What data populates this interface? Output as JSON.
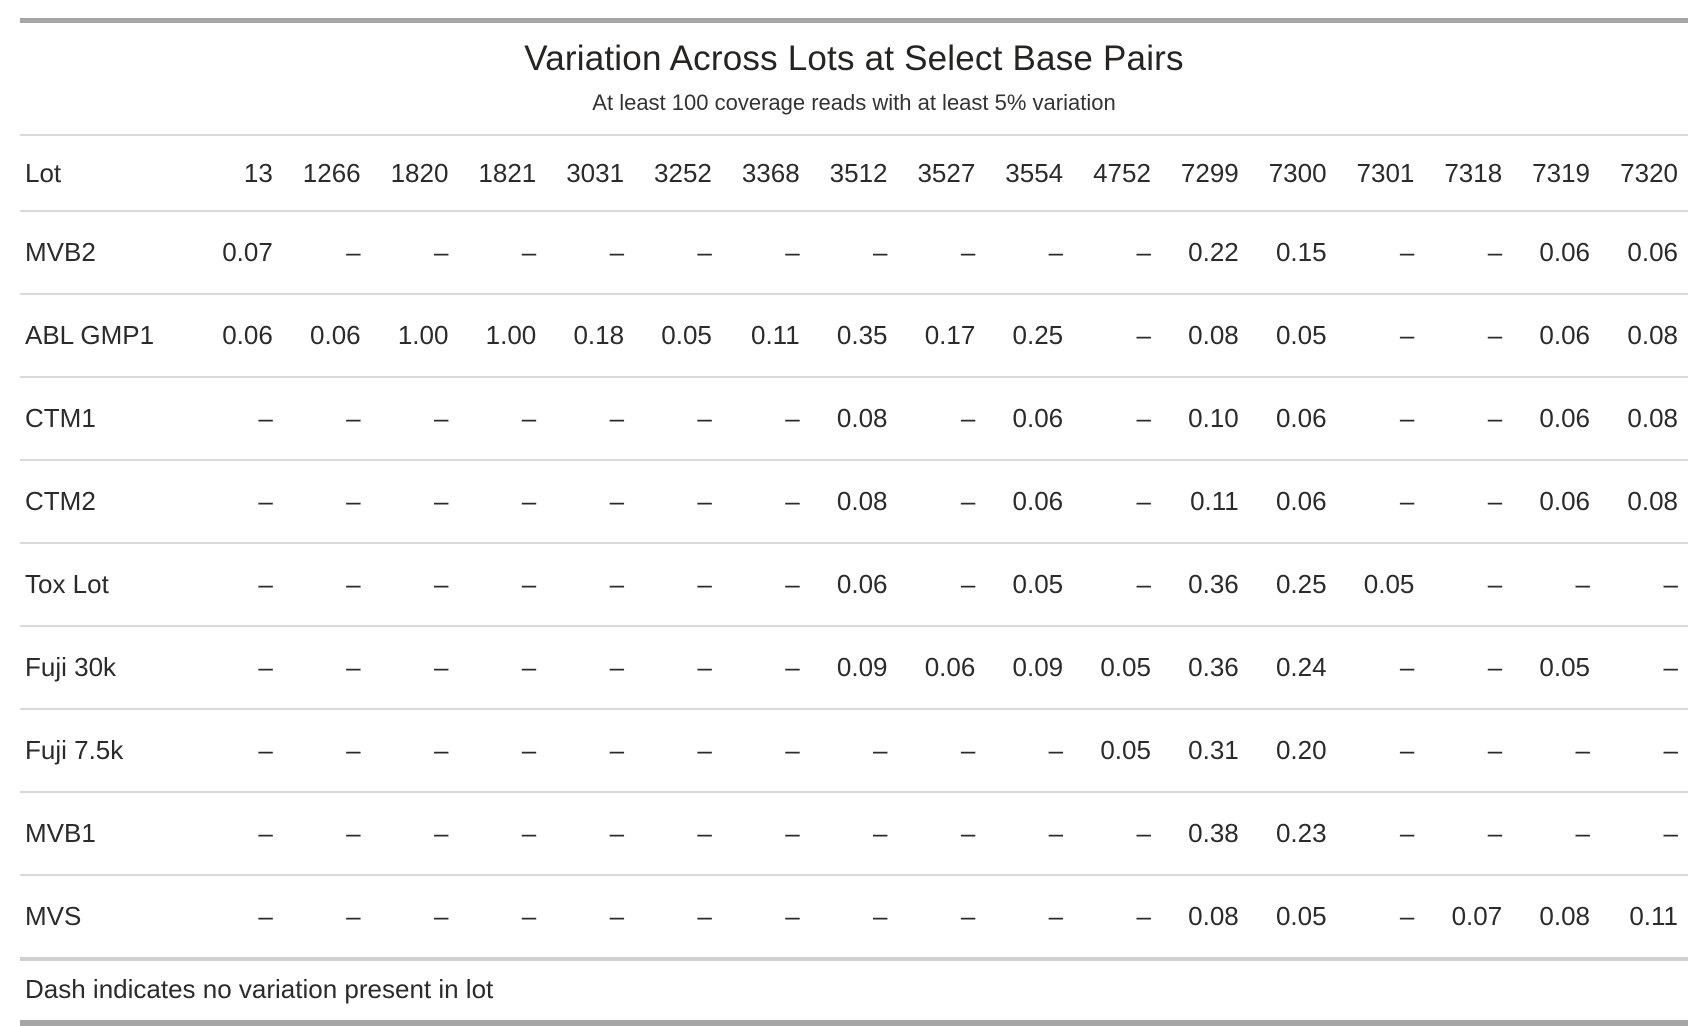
{
  "colors": {
    "rule_dark": "#a6a6a6",
    "rule_light": "#d9d9d9",
    "text": "#2b2b2b",
    "background": "#ffffff"
  },
  "chart_data": {
    "type": "table",
    "title": "Variation Across Lots at Select Base Pairs",
    "subtitle": "At least 100 coverage reads with at least 5% variation",
    "footnote": "Dash indicates no variation present in lot",
    "no_value_symbol": "–",
    "columns": [
      "Lot",
      "13",
      "1266",
      "1820",
      "1821",
      "3031",
      "3252",
      "3368",
      "3512",
      "3527",
      "3554",
      "4752",
      "7299",
      "7300",
      "7301",
      "7318",
      "7319",
      "7320"
    ],
    "rows": [
      {
        "lot": "MVB2",
        "values": [
          "0.07",
          "–",
          "–",
          "–",
          "–",
          "–",
          "–",
          "–",
          "–",
          "–",
          "–",
          "0.22",
          "0.15",
          "–",
          "–",
          "0.06",
          "0.06"
        ]
      },
      {
        "lot": "ABL GMP1",
        "values": [
          "0.06",
          "0.06",
          "1.00",
          "1.00",
          "0.18",
          "0.05",
          "0.11",
          "0.35",
          "0.17",
          "0.25",
          "–",
          "0.08",
          "0.05",
          "–",
          "–",
          "0.06",
          "0.08"
        ]
      },
      {
        "lot": "CTM1",
        "values": [
          "–",
          "–",
          "–",
          "–",
          "–",
          "–",
          "–",
          "0.08",
          "–",
          "0.06",
          "–",
          "0.10",
          "0.06",
          "–",
          "–",
          "0.06",
          "0.08"
        ]
      },
      {
        "lot": "CTM2",
        "values": [
          "–",
          "–",
          "–",
          "–",
          "–",
          "–",
          "–",
          "0.08",
          "–",
          "0.06",
          "–",
          "0.11",
          "0.06",
          "–",
          "–",
          "0.06",
          "0.08"
        ]
      },
      {
        "lot": "Tox Lot",
        "values": [
          "–",
          "–",
          "–",
          "–",
          "–",
          "–",
          "–",
          "0.06",
          "–",
          "0.05",
          "–",
          "0.36",
          "0.25",
          "0.05",
          "–",
          "–",
          "–"
        ]
      },
      {
        "lot": "Fuji 30k",
        "values": [
          "–",
          "–",
          "–",
          "–",
          "–",
          "–",
          "–",
          "0.09",
          "0.06",
          "0.09",
          "0.05",
          "0.36",
          "0.24",
          "–",
          "–",
          "0.05",
          "–"
        ]
      },
      {
        "lot": "Fuji 7.5k",
        "values": [
          "–",
          "–",
          "–",
          "–",
          "–",
          "–",
          "–",
          "–",
          "–",
          "–",
          "0.05",
          "0.31",
          "0.20",
          "–",
          "–",
          "–",
          "–"
        ]
      },
      {
        "lot": "MVB1",
        "values": [
          "–",
          "–",
          "–",
          "–",
          "–",
          "–",
          "–",
          "–",
          "–",
          "–",
          "–",
          "0.38",
          "0.23",
          "–",
          "–",
          "–",
          "–"
        ]
      },
      {
        "lot": "MVS",
        "values": [
          "–",
          "–",
          "–",
          "–",
          "–",
          "–",
          "–",
          "–",
          "–",
          "–",
          "–",
          "0.08",
          "0.05",
          "–",
          "0.07",
          "0.08",
          "0.11"
        ]
      }
    ]
  }
}
